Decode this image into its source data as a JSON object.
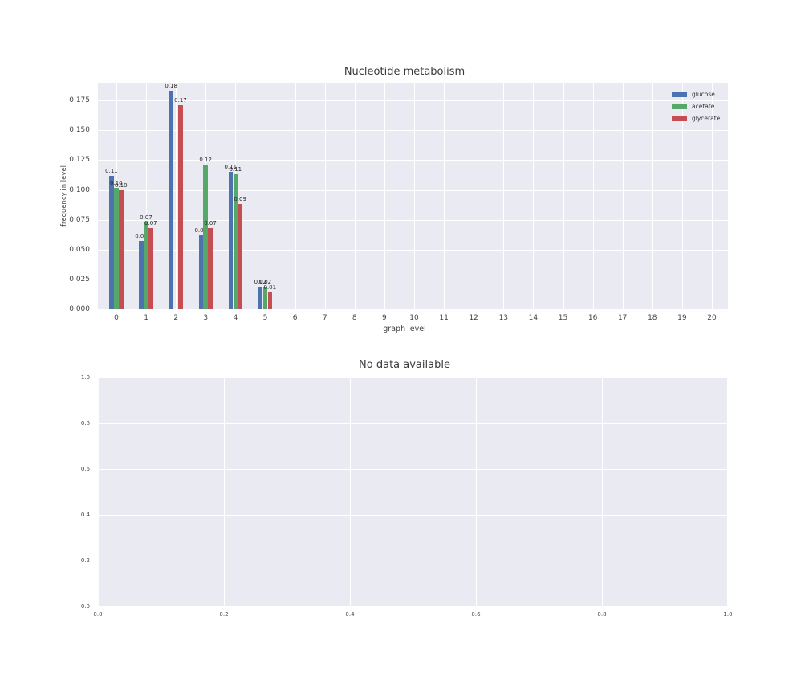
{
  "figure": {
    "background": "#ffffff",
    "plot_background": "#eaeaf2",
    "gridline_color": "#ffffff"
  },
  "chart_data": [
    {
      "type": "bar",
      "title": "Nucleotide metabolism",
      "xlabel": "graph level",
      "ylabel": "frequency in level",
      "categories": [
        "0",
        "1",
        "2",
        "3",
        "4",
        "5",
        "6",
        "7",
        "8",
        "9",
        "10",
        "11",
        "12",
        "13",
        "14",
        "15",
        "16",
        "17",
        "18",
        "19",
        "20"
      ],
      "series": [
        {
          "name": "glucose",
          "color": "#4c72b0",
          "values": [
            0.112,
            0.057,
            0.183,
            0.062,
            0.115,
            0.019,
            0,
            0,
            0,
            0,
            0,
            0,
            0,
            0,
            0,
            0,
            0,
            0,
            0,
            0,
            0
          ],
          "bar_labels": [
            "0.11",
            "0.06",
            "0.18",
            "0.06",
            "0.11",
            "0.02",
            "",
            "",
            "",
            "",
            "",
            "",
            "",
            "",
            "",
            "",
            "",
            "",
            "",
            "",
            ""
          ]
        },
        {
          "name": "acetate",
          "color": "#55a868",
          "values": [
            0.102,
            0.073,
            0,
            0.121,
            0.113,
            0.019,
            0,
            0,
            0,
            0,
            0,
            0,
            0,
            0,
            0,
            0,
            0,
            0,
            0,
            0,
            0
          ],
          "bar_labels": [
            "0.10",
            "0.07",
            "",
            "0.12",
            "0.11",
            "0.02",
            "",
            "",
            "",
            "",
            "",
            "",
            "",
            "",
            "",
            "",
            "",
            "",
            "",
            "",
            ""
          ]
        },
        {
          "name": "glycerate",
          "color": "#c44e52",
          "values": [
            0.1,
            0.068,
            0.171,
            0.068,
            0.088,
            0.014,
            0,
            0,
            0,
            0,
            0,
            0,
            0,
            0,
            0,
            0,
            0,
            0,
            0,
            0,
            0
          ],
          "bar_labels": [
            "0.10",
            "0.07",
            "0.17",
            "0.07",
            "0.09",
            "0.01",
            "",
            "",
            "",
            "",
            "",
            "",
            "",
            "",
            "",
            "",
            "",
            "",
            "",
            "",
            ""
          ]
        }
      ],
      "yticks": [
        "0.000",
        "0.025",
        "0.050",
        "0.075",
        "0.100",
        "0.125",
        "0.150",
        "0.175"
      ],
      "ylim": [
        0,
        0.19
      ],
      "grid": true,
      "legend_position": "upper right"
    },
    {
      "type": "empty",
      "title": "No data available",
      "xlabel": "",
      "ylabel": "",
      "xticks": [
        "0.0",
        "0.2",
        "0.4",
        "0.6",
        "0.8",
        "1.0"
      ],
      "yticks": [
        "0.0",
        "0.2",
        "0.4",
        "0.6",
        "0.8",
        "1.0"
      ],
      "xlim": [
        0,
        1
      ],
      "ylim": [
        0,
        1
      ],
      "grid": true
    }
  ]
}
